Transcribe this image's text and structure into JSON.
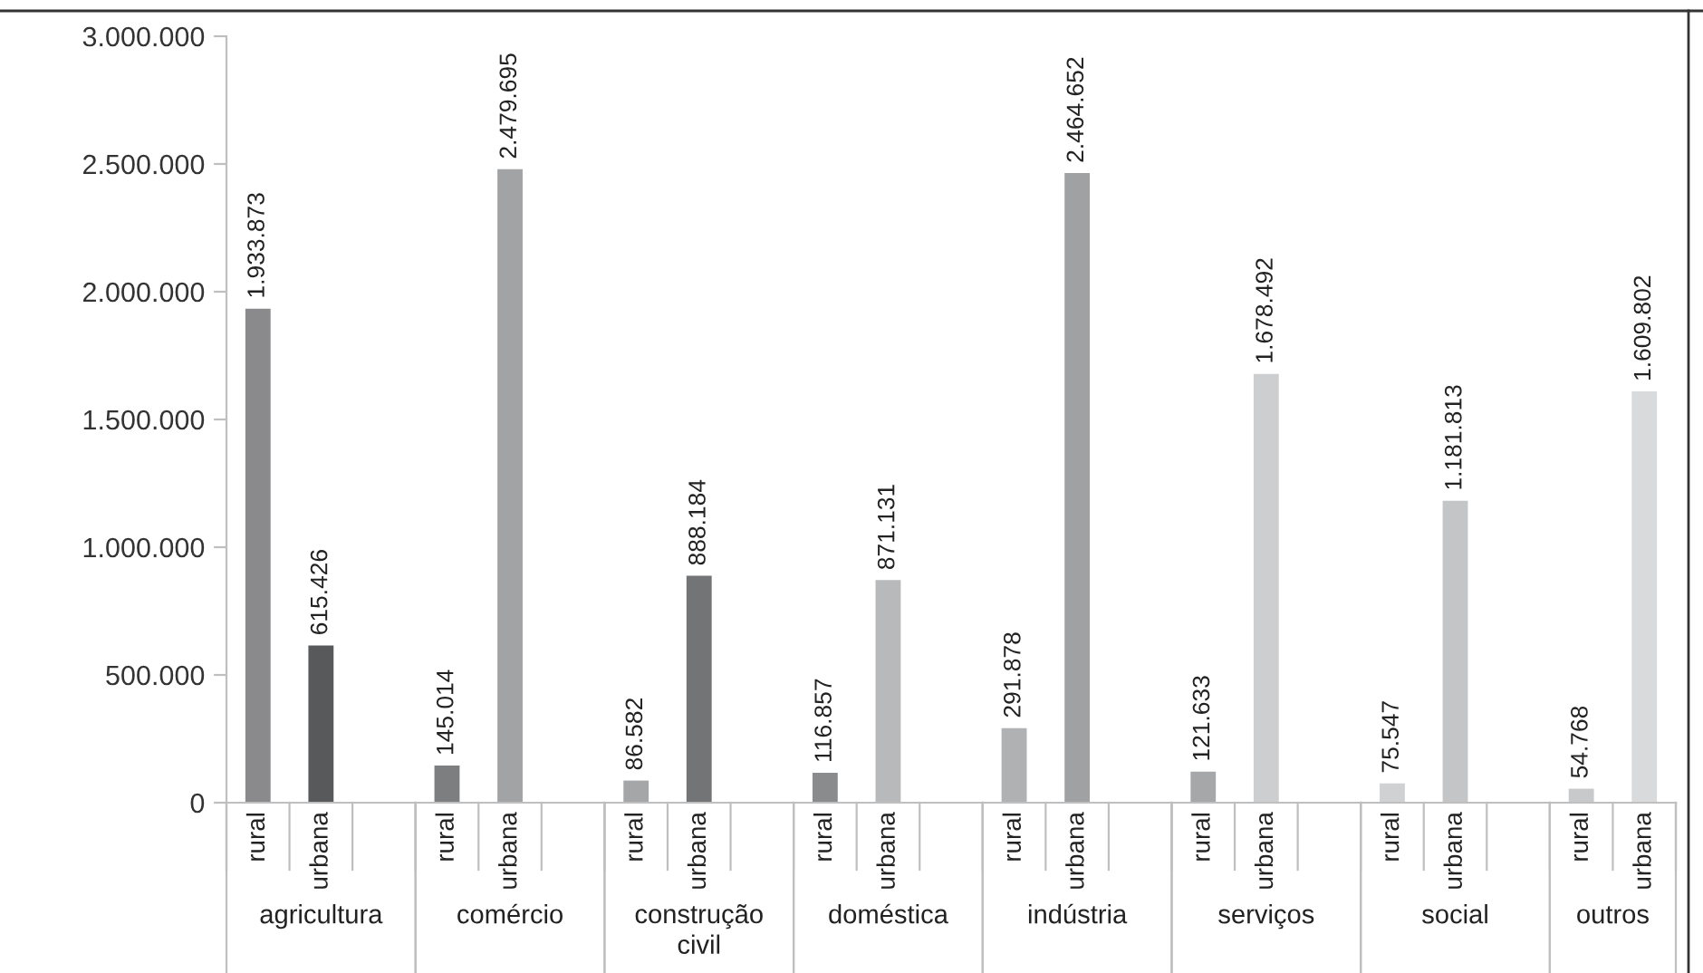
{
  "chart_data": {
    "type": "bar",
    "categories": [
      "rural",
      "urbana",
      null,
      "rural",
      "urbana",
      null,
      "rural",
      "urbana",
      null,
      "rural",
      "urbana",
      null,
      "rural",
      "urbana",
      null,
      "rural",
      "urbana",
      null,
      "rural",
      "urbana",
      null,
      "rural",
      "urbana"
    ],
    "values": [
      1933873,
      615426,
      null,
      145014,
      2479695,
      null,
      86582,
      888184,
      null,
      116857,
      871131,
      null,
      291878,
      2464652,
      null,
      121633,
      1678492,
      null,
      75547,
      1181813,
      null,
      54768,
      1609802
    ],
    "colors": [
      "#8a8a8c",
      "#58595b",
      null,
      "#7d7e80",
      "#a2a3a5",
      null,
      "#a5a6a8",
      "#737476",
      null,
      "#8a8b8d",
      "#b8b9bb",
      null,
      "#b0b1b3",
      "#a0a1a3",
      null,
      "#a6a7a9",
      "#cdced0",
      null,
      "#d0d1d3",
      "#c4c5c7",
      null,
      "#c8c9cb",
      "#d9dadc"
    ],
    "value_labels": [
      "1.933.873",
      "615.426",
      null,
      "145.014",
      "2.479.695",
      null,
      "86.582",
      "888.184",
      null,
      "116.857",
      "871.131",
      null,
      "291.878",
      "2.464.652",
      null,
      "121.633",
      "1.678.492",
      null,
      "75.547",
      "1.181.813",
      null,
      "54.768",
      "1.609.802"
    ],
    "annotations": [
      "agricultura",
      "comércio",
      "construção\ncivil",
      "doméstica",
      "indústria",
      "serviços",
      "social",
      "outros"
    ],
    "ylim": [
      0,
      3000000
    ],
    "yticks": [
      0,
      {
        "value": 500000,
        "label": "500.000"
      },
      {
        "value": 1000000,
        "label": "1.000.000"
      },
      {
        "value": 1500000,
        "label": "1.500.000"
      },
      {
        "value": 2000000,
        "label": "2.000.000"
      },
      {
        "value": 2500000,
        "label": "2.500.000"
      },
      {
        "value": 3000000,
        "label": "3.000.000"
      }
    ],
    "grid": false,
    "legend": false
  }
}
